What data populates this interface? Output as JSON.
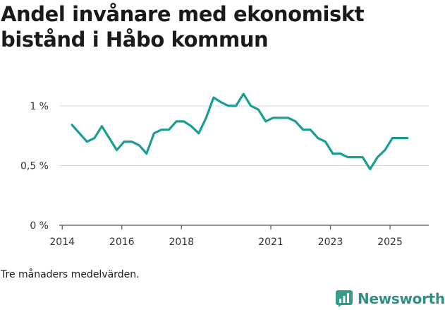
{
  "chart_title": {
    "line1": "Andel invånare med ekonomiskt",
    "line2": "bistånd i Håbo kommun"
  },
  "footnote": "Tre månaders medelvärden.",
  "brand": {
    "name": "Newsworthy",
    "icon": "newsworthy-logo-icon",
    "color": "#3a9a8c"
  },
  "chart_data": {
    "type": "line",
    "title": "Andel invånare med ekonomiskt bistånd i Håbo kommun",
    "xlabel": "",
    "ylabel": "",
    "y_unit": "%",
    "ylim": [
      0,
      1.1
    ],
    "grid": true,
    "legend": "none",
    "x_ticks": [
      {
        "value": 2014,
        "label": "2014"
      },
      {
        "value": 2016,
        "label": "2016"
      },
      {
        "value": 2018,
        "label": "2018"
      },
      {
        "value": 2021,
        "label": "2021"
      },
      {
        "value": 2023,
        "label": "2023"
      },
      {
        "value": 2025,
        "label": "2025"
      }
    ],
    "y_ticks": [
      {
        "value": 0,
        "label": "0 %"
      },
      {
        "value": 0.5,
        "label": "0,5 %"
      },
      {
        "value": 1,
        "label": "1 %"
      }
    ],
    "series": [
      {
        "color": "#1a9e94",
        "points": [
          [
            2014.33,
            0.84
          ],
          [
            2014.58,
            0.77
          ],
          [
            2014.83,
            0.7
          ],
          [
            2015.08,
            0.73
          ],
          [
            2015.33,
            0.83
          ],
          [
            2015.58,
            0.73
          ],
          [
            2015.83,
            0.63
          ],
          [
            2016.08,
            0.7
          ],
          [
            2016.33,
            0.7
          ],
          [
            2016.58,
            0.67
          ],
          [
            2016.83,
            0.6
          ],
          [
            2017.08,
            0.77
          ],
          [
            2017.33,
            0.8
          ],
          [
            2017.58,
            0.8
          ],
          [
            2017.83,
            0.87
          ],
          [
            2018.08,
            0.87
          ],
          [
            2018.33,
            0.83
          ],
          [
            2018.58,
            0.77
          ],
          [
            2018.83,
            0.9
          ],
          [
            2019.08,
            1.07
          ],
          [
            2019.33,
            1.03
          ],
          [
            2019.58,
            1.0
          ],
          [
            2019.83,
            1.0
          ],
          [
            2020.08,
            1.1
          ],
          [
            2020.33,
            1.0
          ],
          [
            2020.58,
            0.97
          ],
          [
            2020.83,
            0.87
          ],
          [
            2021.08,
            0.9
          ],
          [
            2021.33,
            0.9
          ],
          [
            2021.58,
            0.9
          ],
          [
            2021.83,
            0.87
          ],
          [
            2022.08,
            0.8
          ],
          [
            2022.33,
            0.8
          ],
          [
            2022.58,
            0.73
          ],
          [
            2022.83,
            0.7
          ],
          [
            2023.08,
            0.6
          ],
          [
            2023.33,
            0.6
          ],
          [
            2023.58,
            0.57
          ],
          [
            2023.83,
            0.57
          ],
          [
            2024.08,
            0.57
          ],
          [
            2024.33,
            0.47
          ],
          [
            2024.58,
            0.57
          ],
          [
            2024.83,
            0.63
          ],
          [
            2025.08,
            0.73
          ],
          [
            2025.33,
            0.73
          ],
          [
            2025.58,
            0.73
          ]
        ]
      }
    ]
  }
}
